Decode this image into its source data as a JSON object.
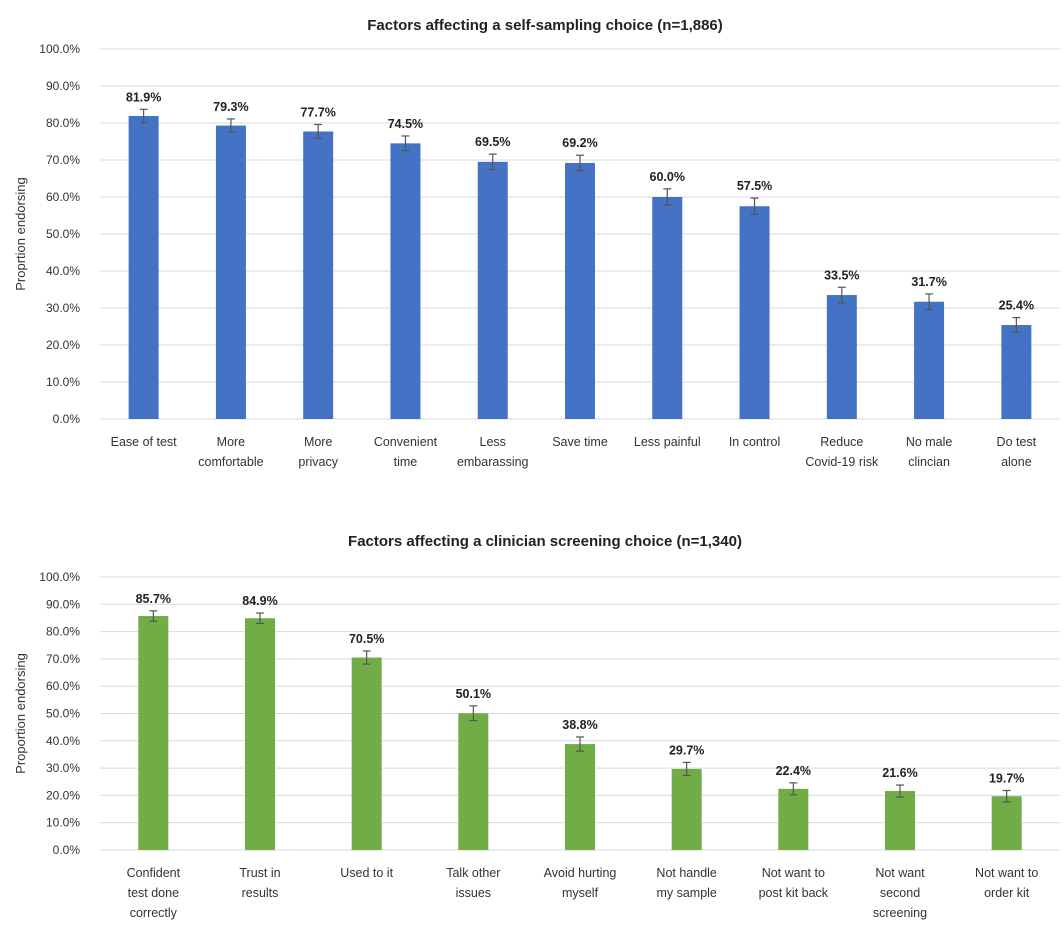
{
  "chart_data": [
    {
      "type": "bar",
      "title": "Factors affecting a self-sampling choice (n=1,886)",
      "ylabel": "Proprtion endorsing",
      "ylim": [
        0,
        100
      ],
      "y_ticks": [
        "0.0%",
        "10.0%",
        "20.0%",
        "30.0%",
        "40.0%",
        "50.0%",
        "60.0%",
        "70.0%",
        "80.0%",
        "90.0%",
        "100.0%"
      ],
      "grid": true,
      "color": "#4472C4",
      "categories": [
        [
          "Ease of test"
        ],
        [
          "More",
          "comfortable"
        ],
        [
          "More",
          "privacy"
        ],
        [
          "Convenient",
          "time"
        ],
        [
          "Less",
          "embarassing"
        ],
        [
          "Save time"
        ],
        [
          "Less painful"
        ],
        [
          "In control"
        ],
        [
          "Reduce",
          "Covid-19 risk"
        ],
        [
          "No male",
          "clincian"
        ],
        [
          "Do test",
          "alone"
        ]
      ],
      "values": [
        81.9,
        79.3,
        77.7,
        74.5,
        69.5,
        69.2,
        60.0,
        57.5,
        33.5,
        31.7,
        25.4
      ],
      "labels": [
        "81.9%",
        "79.3%",
        "77.7%",
        "74.5%",
        "69.5%",
        "69.2%",
        "60.0%",
        "57.5%",
        "33.5%",
        "31.7%",
        "25.4%"
      ],
      "error": [
        1.8,
        1.8,
        1.9,
        2.0,
        2.1,
        2.1,
        2.2,
        2.2,
        2.1,
        2.1,
        2.0
      ]
    },
    {
      "type": "bar",
      "title": "Factors affecting a clinician screening choice (n=1,340)",
      "ylabel": "Proportion endorsing",
      "ylim": [
        0,
        100
      ],
      "y_ticks": [
        "0.0%",
        "10.0%",
        "20.0%",
        "30.0%",
        "40.0%",
        "50.0%",
        "60.0%",
        "70.0%",
        "80.0%",
        "90.0%",
        "100.0%"
      ],
      "grid": true,
      "color": "#70AD47",
      "categories": [
        [
          "Confident",
          "test done",
          "correctly"
        ],
        [
          "Trust in",
          "results"
        ],
        [
          "Used to it"
        ],
        [
          "Talk other",
          "issues"
        ],
        [
          "Avoid hurting",
          "myself"
        ],
        [
          "Not handle",
          "my sample"
        ],
        [
          "Not want to",
          "post kit back"
        ],
        [
          "Not want",
          "second",
          "screening"
        ],
        [
          "Not want to",
          "order kit"
        ]
      ],
      "values": [
        85.7,
        84.9,
        70.5,
        50.1,
        38.8,
        29.7,
        22.4,
        21.6,
        19.7
      ],
      "labels": [
        "85.7%",
        "84.9%",
        "70.5%",
        "50.1%",
        "38.8%",
        "29.7%",
        "22.4%",
        "21.6%",
        "19.7%"
      ],
      "error": [
        1.9,
        1.9,
        2.4,
        2.7,
        2.6,
        2.4,
        2.2,
        2.2,
        2.1
      ]
    }
  ]
}
